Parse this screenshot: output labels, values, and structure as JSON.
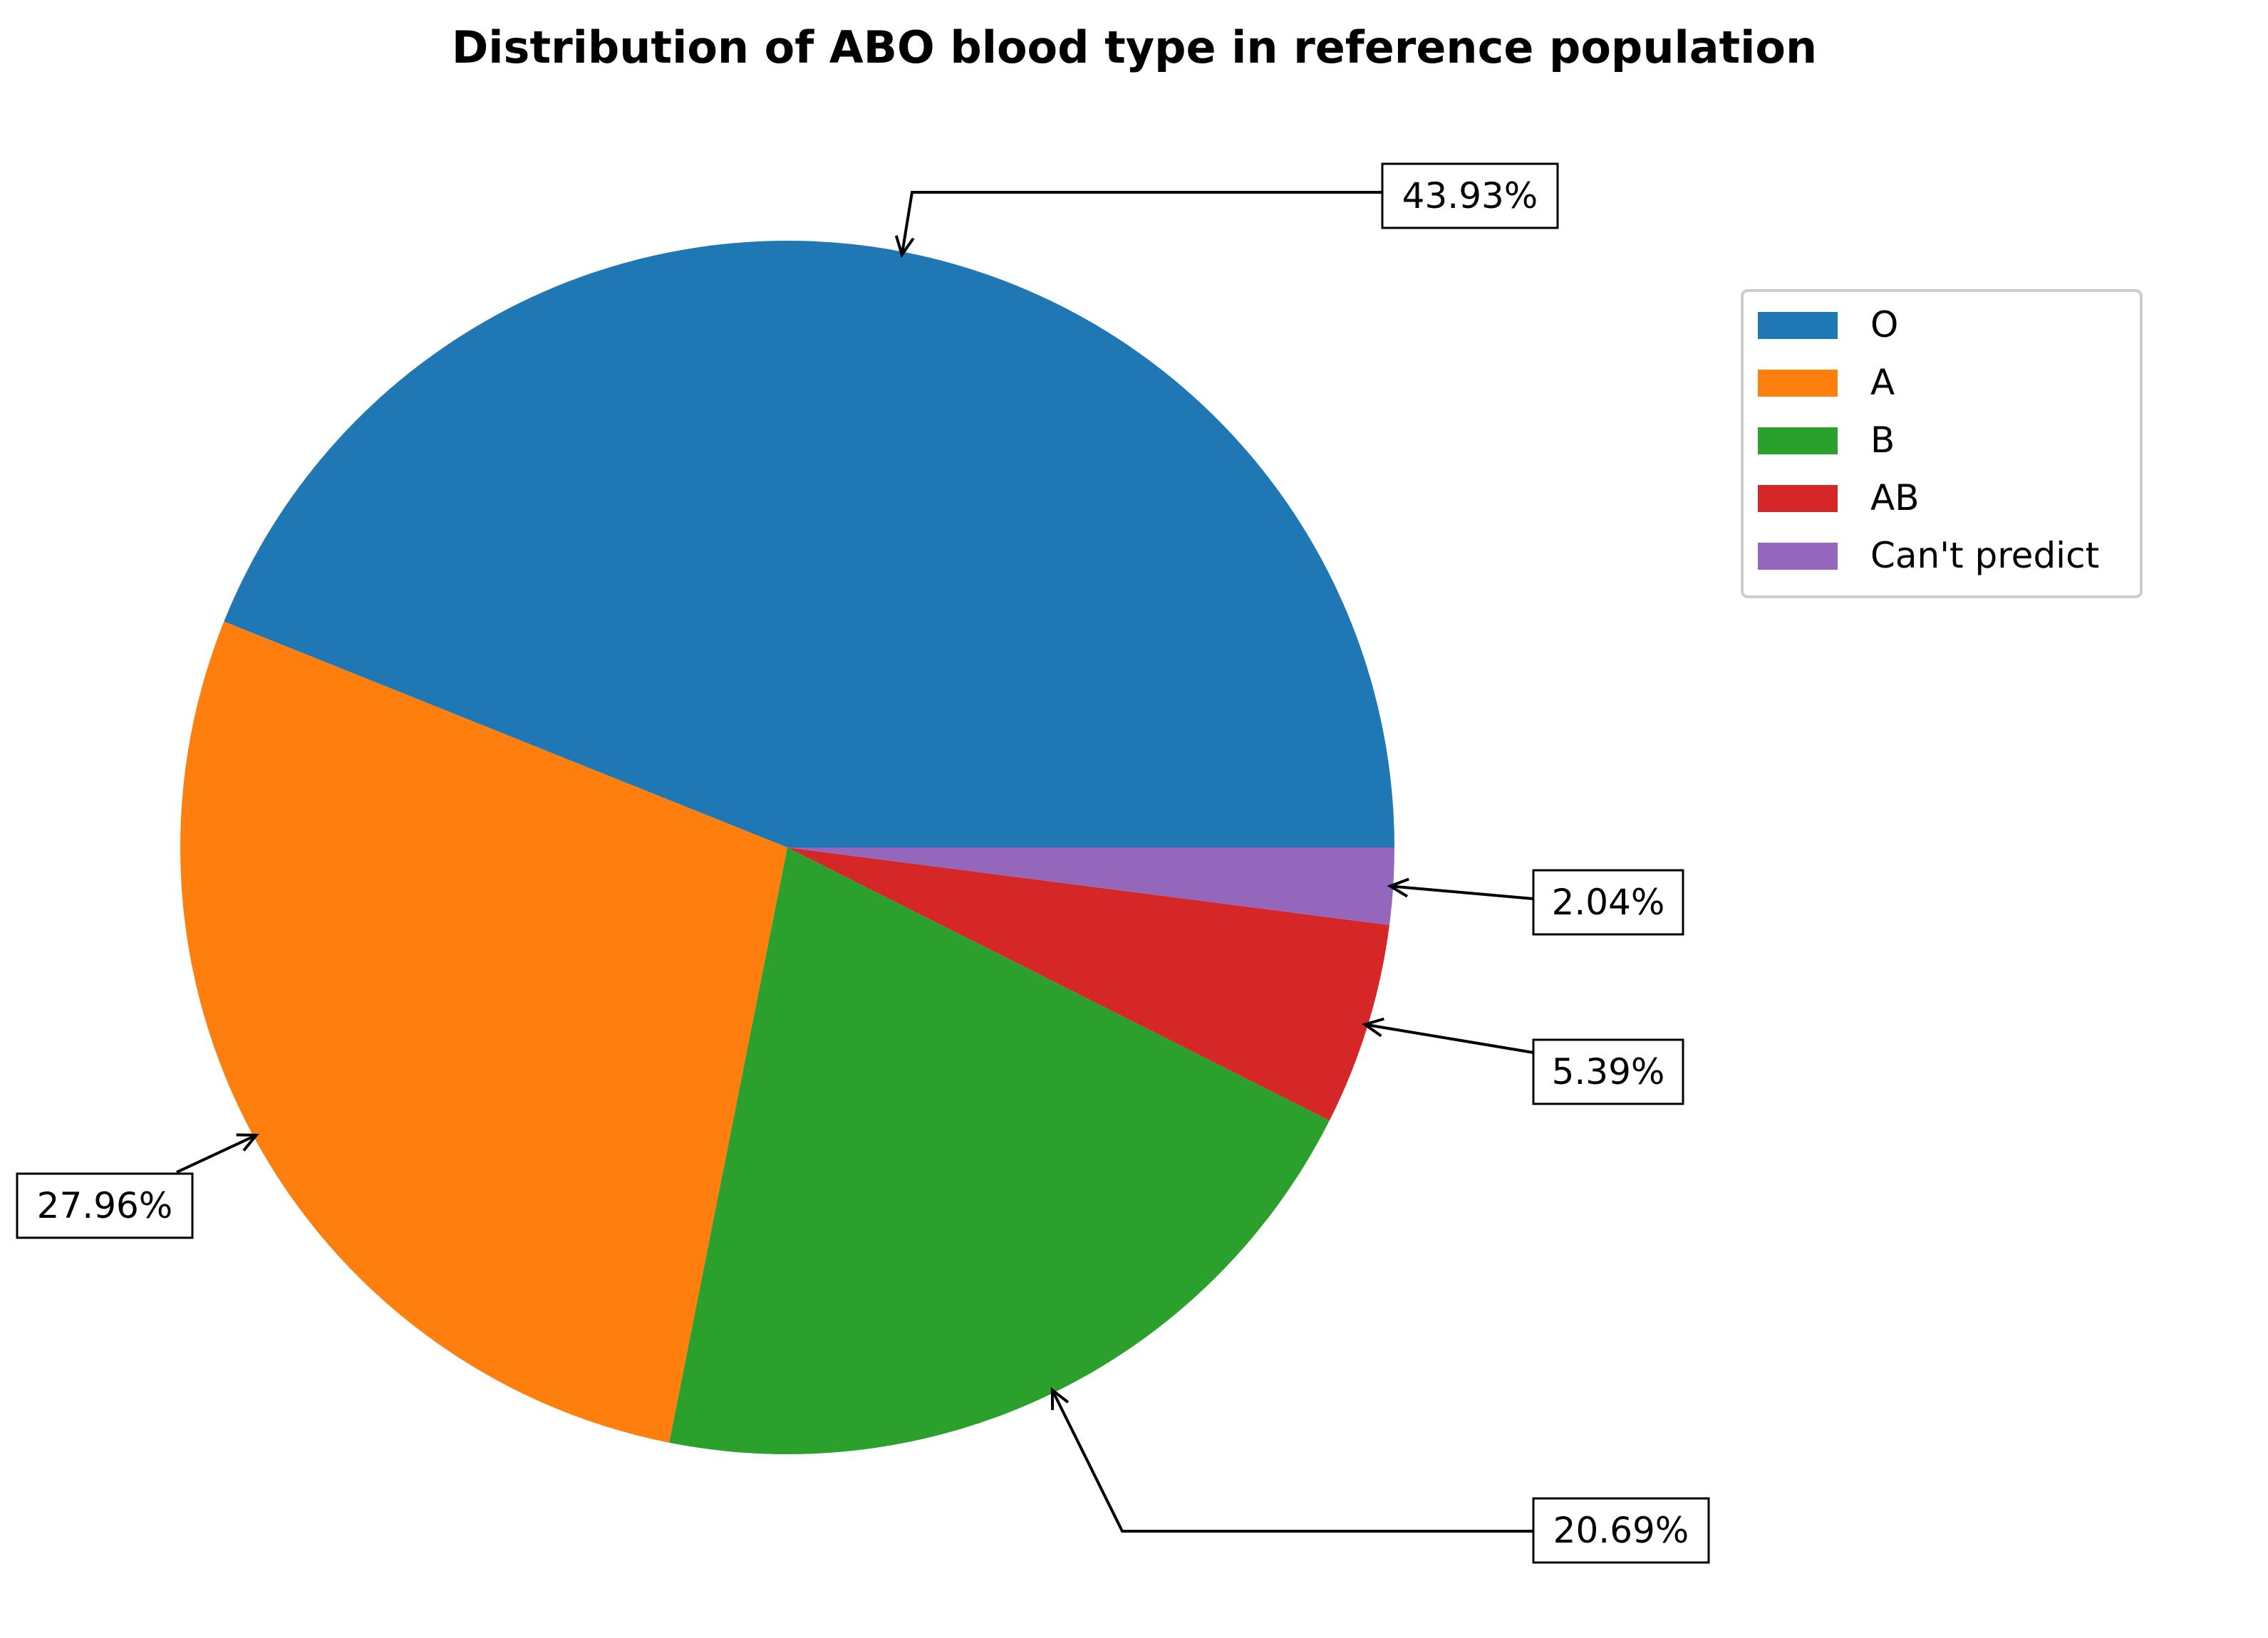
{
  "chart_data": {
    "type": "pie",
    "title": "Distribution of ABO blood type in reference population",
    "slices": [
      {
        "label": "O",
        "value": 43.93,
        "display": "43.93%",
        "color": "#1f77b4"
      },
      {
        "label": "A",
        "value": 27.96,
        "display": "27.96%",
        "color": "#ff7f0e"
      },
      {
        "label": "B",
        "value": 20.69,
        "display": "20.69%",
        "color": "#2ca02c"
      },
      {
        "label": "AB",
        "value": 5.39,
        "display": "5.39%",
        "color": "#d62728"
      },
      {
        "label": "Can't predict",
        "value": 2.04,
        "display": "2.04%",
        "color": "#9467bd"
      }
    ],
    "start_angle_deg": 0,
    "direction": "counterclockwise",
    "legend_position": "top-right"
  }
}
